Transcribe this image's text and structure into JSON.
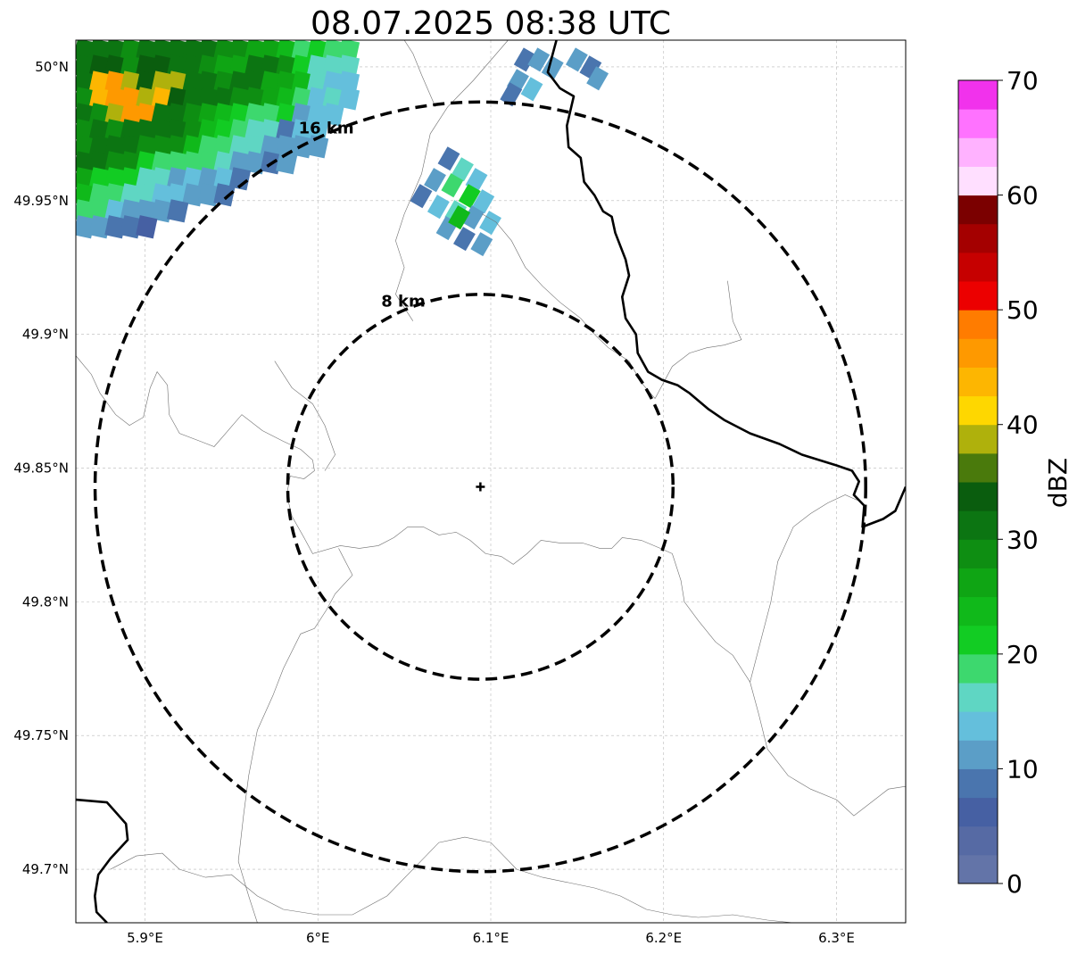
{
  "title": "08.07.2025 08:38 UTC",
  "map": {
    "extent_lon": [
      5.86,
      6.34
    ],
    "extent_lat": [
      49.68,
      50.01
    ],
    "lat_ticks": [
      {
        "value": 50.0,
        "label": "50°N"
      },
      {
        "value": 49.95,
        "label": "49.95°N"
      },
      {
        "value": 49.9,
        "label": "49.9°N"
      },
      {
        "value": 49.85,
        "label": "49.85°N"
      },
      {
        "value": 49.8,
        "label": "49.8°N"
      },
      {
        "value": 49.75,
        "label": "49.75°N"
      },
      {
        "value": 49.7,
        "label": "49.7°N"
      }
    ],
    "lon_ticks": [
      {
        "value": 5.9,
        "label": "5.9°E"
      },
      {
        "value": 6.0,
        "label": "6°E"
      },
      {
        "value": 6.1,
        "label": "6.1°E"
      },
      {
        "value": 6.2,
        "label": "6.2°E"
      },
      {
        "value": 6.3,
        "label": "6.3°E"
      }
    ],
    "gridlines": true,
    "center": {
      "lon": 6.094,
      "lat": 49.843
    },
    "rings": [
      {
        "radius_km": 8,
        "label": "8 km"
      },
      {
        "radius_km": 16,
        "label": "16 km"
      }
    ],
    "country_border": [
      [
        [
          6.138,
          50.01
        ],
        [
          6.133,
          49.998
        ],
        [
          6.14,
          49.992
        ],
        [
          6.148,
          49.989
        ],
        [
          6.144,
          49.978
        ],
        [
          6.145,
          49.97
        ],
        [
          6.152,
          49.966
        ],
        [
          6.154,
          49.957
        ],
        [
          6.16,
          49.952
        ],
        [
          6.165,
          49.946
        ],
        [
          6.17,
          49.944
        ],
        [
          6.172,
          49.938
        ],
        [
          6.175,
          49.933
        ],
        [
          6.178,
          49.928
        ],
        [
          6.18,
          49.922
        ],
        [
          6.176,
          49.914
        ],
        [
          6.178,
          49.906
        ],
        [
          6.184,
          49.9
        ],
        [
          6.185,
          49.893
        ],
        [
          6.191,
          49.886
        ],
        [
          6.199,
          49.883
        ],
        [
          6.208,
          49.881
        ],
        [
          6.215,
          49.878
        ],
        [
          6.226,
          49.872
        ],
        [
          6.235,
          49.868
        ],
        [
          6.25,
          49.863
        ],
        [
          6.267,
          49.859
        ],
        [
          6.28,
          49.855
        ],
        [
          6.29,
          49.853
        ],
        [
          6.3,
          49.851
        ],
        [
          6.309,
          49.849
        ],
        [
          6.313,
          49.845
        ],
        [
          6.31,
          49.84
        ],
        [
          6.316,
          49.836
        ],
        [
          6.315,
          49.828
        ],
        [
          6.327,
          49.831
        ],
        [
          6.334,
          49.834
        ],
        [
          6.34,
          49.843
        ]
      ],
      [
        [
          5.86,
          49.726
        ],
        [
          5.878,
          49.725
        ],
        [
          5.889,
          49.717
        ],
        [
          5.89,
          49.711
        ],
        [
          5.88,
          49.704
        ],
        [
          5.873,
          49.698
        ],
        [
          5.871,
          49.69
        ],
        [
          5.872,
          49.684
        ],
        [
          5.878,
          49.68
        ]
      ]
    ],
    "admin_lines": [
      [
        [
          5.86,
          49.892
        ],
        [
          5.869,
          49.885
        ],
        [
          5.874,
          49.878
        ],
        [
          5.883,
          49.87
        ],
        [
          5.891,
          49.866
        ],
        [
          5.899,
          49.869
        ],
        [
          5.903,
          49.88
        ],
        [
          5.907,
          49.886
        ],
        [
          5.913,
          49.881
        ],
        [
          5.914,
          49.87
        ],
        [
          5.92,
          49.863
        ],
        [
          5.932,
          49.86
        ],
        [
          5.94,
          49.858
        ],
        [
          5.948,
          49.864
        ],
        [
          5.956,
          49.87
        ],
        [
          5.968,
          49.864
        ],
        [
          5.98,
          49.86
        ],
        [
          5.99,
          49.857
        ],
        [
          5.997,
          49.853
        ],
        [
          5.998,
          49.849
        ],
        [
          5.992,
          49.846
        ],
        [
          5.984,
          49.847
        ],
        [
          5.982,
          49.84
        ],
        [
          5.985,
          49.832
        ],
        [
          5.992,
          49.824
        ],
        [
          5.997,
          49.818
        ],
        [
          6.013,
          49.821
        ],
        [
          6.024,
          49.82
        ],
        [
          6.035,
          49.821
        ],
        [
          6.044,
          49.824
        ],
        [
          6.052,
          49.828
        ],
        [
          6.061,
          49.828
        ],
        [
          6.07,
          49.825
        ],
        [
          6.08,
          49.826
        ],
        [
          6.088,
          49.823
        ],
        [
          6.097,
          49.818
        ],
        [
          6.106,
          49.817
        ],
        [
          6.113,
          49.814
        ],
        [
          6.121,
          49.818
        ],
        [
          6.129,
          49.823
        ],
        [
          6.14,
          49.822
        ],
        [
          6.153,
          49.822
        ],
        [
          6.163,
          49.82
        ],
        [
          6.17,
          49.82
        ],
        [
          6.176,
          49.824
        ],
        [
          6.187,
          49.823
        ],
        [
          6.198,
          49.82
        ],
        [
          6.205,
          49.818
        ]
      ],
      [
        [
          6.012,
          49.82
        ],
        [
          6.02,
          49.81
        ],
        [
          6.01,
          49.803
        ],
        [
          6.005,
          49.797
        ],
        [
          5.998,
          49.79
        ],
        [
          5.99,
          49.788
        ],
        [
          5.98,
          49.775
        ],
        [
          5.974,
          49.765
        ],
        [
          5.965,
          49.752
        ],
        [
          5.96,
          49.735
        ],
        [
          5.957,
          49.72
        ],
        [
          5.954,
          49.703
        ],
        [
          5.96,
          49.69
        ],
        [
          5.965,
          49.68
        ]
      ],
      [
        [
          6.055,
          49.905
        ],
        [
          6.045,
          49.915
        ],
        [
          6.05,
          49.925
        ],
        [
          6.045,
          49.935
        ],
        [
          6.05,
          49.945
        ],
        [
          6.06,
          49.96
        ],
        [
          6.065,
          49.975
        ],
        [
          6.075,
          49.985
        ],
        [
          6.09,
          49.995
        ],
        [
          6.11,
          50.01
        ]
      ],
      [
        [
          6.095,
          49.945
        ],
        [
          6.103,
          49.942
        ],
        [
          6.112,
          49.935
        ],
        [
          6.12,
          49.925
        ],
        [
          6.13,
          49.918
        ],
        [
          6.14,
          49.912
        ],
        [
          6.152,
          49.906
        ],
        [
          6.16,
          49.9
        ],
        [
          6.168,
          49.895
        ],
        [
          6.18,
          49.89
        ],
        [
          6.187,
          49.882
        ],
        [
          6.195,
          49.876
        ]
      ],
      [
        [
          6.195,
          49.876
        ],
        [
          6.205,
          49.888
        ],
        [
          6.215,
          49.893
        ],
        [
          6.225,
          49.895
        ],
        [
          6.235,
          49.896
        ],
        [
          6.245,
          49.898
        ],
        [
          6.24,
          49.905
        ],
        [
          6.237,
          49.92
        ]
      ],
      [
        [
          6.205,
          49.818
        ],
        [
          6.21,
          49.808
        ],
        [
          6.212,
          49.8
        ],
        [
          6.22,
          49.793
        ],
        [
          6.23,
          49.785
        ],
        [
          6.24,
          49.78
        ],
        [
          6.25,
          49.77
        ],
        [
          6.255,
          49.758
        ],
        [
          6.26,
          49.745
        ],
        [
          6.272,
          49.735
        ],
        [
          6.285,
          49.73
        ],
        [
          6.3,
          49.726
        ],
        [
          6.31,
          49.72
        ],
        [
          6.32,
          49.725
        ],
        [
          6.33,
          49.73
        ],
        [
          6.34,
          49.731
        ]
      ],
      [
        [
          6.25,
          49.77
        ],
        [
          6.258,
          49.79
        ],
        [
          6.262,
          49.8
        ],
        [
          6.266,
          49.815
        ],
        [
          6.275,
          49.828
        ],
        [
          6.285,
          49.833
        ],
        [
          6.295,
          49.837
        ],
        [
          6.305,
          49.84
        ],
        [
          6.312,
          49.838
        ]
      ],
      [
        [
          5.88,
          49.7
        ],
        [
          5.895,
          49.705
        ],
        [
          5.91,
          49.706
        ],
        [
          5.92,
          49.7
        ],
        [
          5.935,
          49.697
        ],
        [
          5.95,
          49.698
        ],
        [
          5.965,
          49.69
        ],
        [
          5.98,
          49.685
        ],
        [
          6.0,
          49.683
        ],
        [
          6.02,
          49.683
        ],
        [
          6.04,
          49.69
        ],
        [
          6.055,
          49.7
        ],
        [
          6.07,
          49.71
        ],
        [
          6.085,
          49.712
        ],
        [
          6.1,
          49.71
        ],
        [
          6.115,
          49.7
        ],
        [
          6.13,
          49.697
        ],
        [
          6.145,
          49.695
        ],
        [
          6.16,
          49.693
        ],
        [
          6.175,
          49.69
        ],
        [
          6.19,
          49.685
        ],
        [
          6.205,
          49.683
        ],
        [
          6.22,
          49.682
        ],
        [
          6.24,
          49.683
        ],
        [
          6.26,
          49.681
        ],
        [
          6.275,
          49.68
        ]
      ],
      [
        [
          5.975,
          49.89
        ],
        [
          5.985,
          49.88
        ],
        [
          5.997,
          49.874
        ],
        [
          6.004,
          49.866
        ],
        [
          6.01,
          49.855
        ],
        [
          6.004,
          49.849
        ]
      ],
      [
        [
          6.068,
          49.985
        ],
        [
          6.06,
          49.997
        ],
        [
          6.055,
          50.005
        ],
        [
          6.05,
          50.01
        ]
      ]
    ]
  },
  "radar": {
    "grid_origin": {
      "lon": 5.86,
      "lat": 50.01
    },
    "cell_lon": 0.009,
    "cell_lat": 0.006,
    "rows": [
      "CCCBCCCCCBBAA97877",
      "CDDBDDCCBAACCB8666",
      "CHIFDFFCCBCCAA9655",
      "BHIIFHDCCCBBA97565",
      "CBFIICCBA98778455",
      "BCBCCCCB98766355",
      "BCCCBBB977664444",
      "CCBB8777764434",
      "A8886645453",
      "9776655443",
      "7754443",
      "44332"
    ],
    "cells_b": [
      {
        "lon": 6.12,
        "lat": 50.003,
        "level": 3
      },
      {
        "lon": 6.128,
        "lat": 50.003,
        "level": 4
      },
      {
        "lon": 6.136,
        "lat": 50.0,
        "level": 4
      },
      {
        "lon": 6.116,
        "lat": 49.995,
        "level": 4
      },
      {
        "lon": 6.124,
        "lat": 49.992,
        "level": 5
      },
      {
        "lon": 6.112,
        "lat": 49.99,
        "level": 3
      },
      {
        "lon": 6.15,
        "lat": 50.003,
        "level": 4
      },
      {
        "lon": 6.158,
        "lat": 50.0,
        "level": 3
      },
      {
        "lon": 6.162,
        "lat": 49.996,
        "level": 4
      },
      {
        "lon": 6.076,
        "lat": 49.966,
        "level": 3
      },
      {
        "lon": 6.084,
        "lat": 49.962,
        "level": 6
      },
      {
        "lon": 6.092,
        "lat": 49.958,
        "level": 5
      },
      {
        "lon": 6.068,
        "lat": 49.958,
        "level": 4
      },
      {
        "lon": 6.078,
        "lat": 49.956,
        "level": 7
      },
      {
        "lon": 6.088,
        "lat": 49.952,
        "level": 8
      },
      {
        "lon": 6.096,
        "lat": 49.95,
        "level": 5
      },
      {
        "lon": 6.06,
        "lat": 49.952,
        "level": 3
      },
      {
        "lon": 6.07,
        "lat": 49.948,
        "level": 5
      },
      {
        "lon": 6.08,
        "lat": 49.946,
        "level": 6
      },
      {
        "lon": 6.09,
        "lat": 49.944,
        "level": 4
      },
      {
        "lon": 6.1,
        "lat": 49.942,
        "level": 5
      },
      {
        "lon": 6.075,
        "lat": 49.94,
        "level": 4
      },
      {
        "lon": 6.085,
        "lat": 49.936,
        "level": 3
      },
      {
        "lon": 6.095,
        "lat": 49.934,
        "level": 4
      },
      {
        "lon": 6.082,
        "lat": 49.944,
        "level": 9
      }
    ]
  },
  "colorbar": {
    "label": "dBZ",
    "min": 0,
    "max": 70,
    "step": 2.5,
    "ticks": [
      "0",
      "10",
      "20",
      "30",
      "40",
      "50",
      "60",
      "70"
    ],
    "colors": [
      "#6374a8",
      "#566aa4",
      "#4660a3",
      "#4a75ae",
      "#5b9ec7",
      "#64bfdc",
      "#5fd6c3",
      "#3dd86e",
      "#12cc23",
      "#10b91a",
      "#0fa514",
      "#0e8e12",
      "#0c7512",
      "#0a5d0e",
      "#4a7a0c",
      "#afb10c",
      "#fed700",
      "#fdb601",
      "#fe9900",
      "#ff7c00",
      "#ec0000",
      "#c60000",
      "#a40000",
      "#7b0000",
      "#ffdfff",
      "#ffb2ff",
      "#ff72ff",
      "#f132ec"
    ]
  }
}
